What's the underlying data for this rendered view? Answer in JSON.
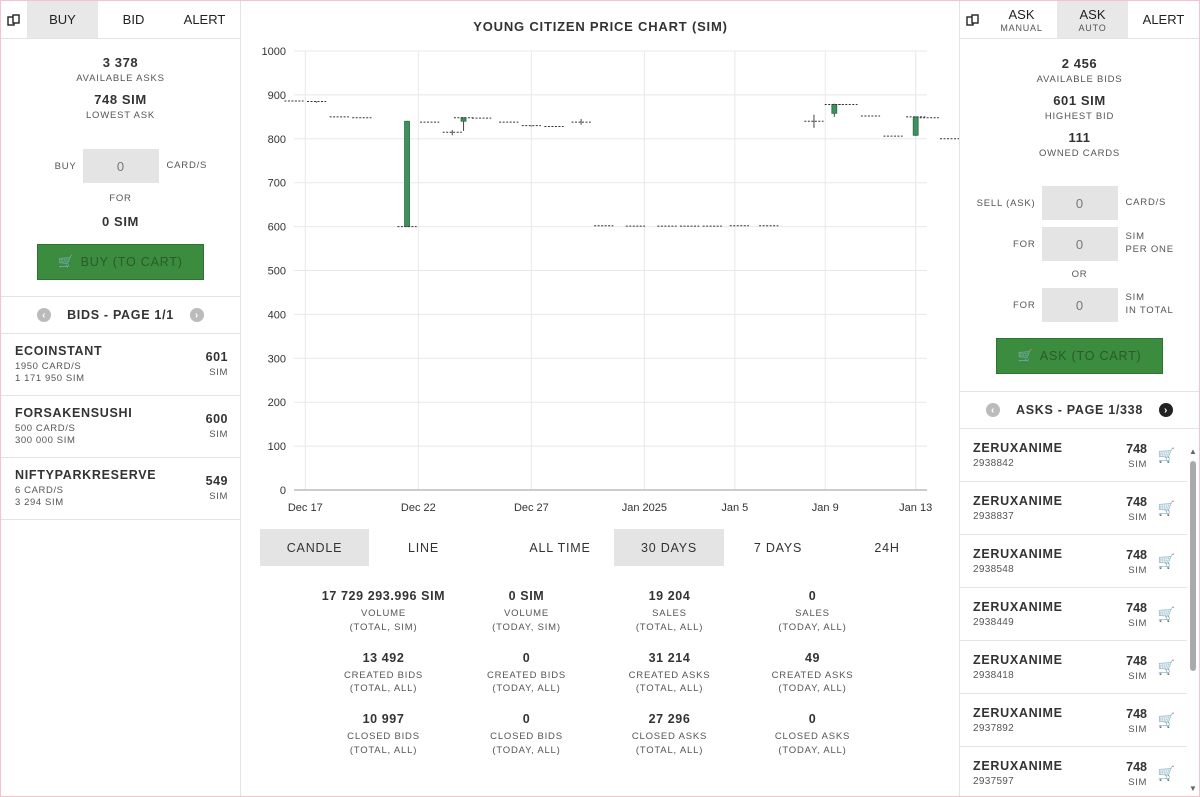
{
  "left": {
    "tabs": [
      {
        "label": "BUY",
        "active": true
      },
      {
        "label": "BID",
        "active": false
      },
      {
        "label": "ALERT",
        "active": false
      }
    ],
    "available_asks": {
      "value": "3 378",
      "label": "AVAILABLE ASKS"
    },
    "lowest_ask": {
      "value": "748 SIM",
      "label": "LOWEST ASK"
    },
    "buy_label": "BUY",
    "buy_input_value": "0",
    "buy_unit": "CARD/S",
    "for_label": "FOR",
    "total": "0 SIM",
    "buy_button": "BUY (TO CART)",
    "pager_label": "BIDS - PAGE 1/1",
    "bids": [
      {
        "name": "ECOINSTANT",
        "cards": "1950 CARD/S",
        "total": "1 171 950 SIM",
        "price": "601",
        "unit": "SIM"
      },
      {
        "name": "FORSAKENSUSHI",
        "cards": "500 CARD/S",
        "total": "300 000 SIM",
        "price": "600",
        "unit": "SIM"
      },
      {
        "name": "NIFTYPARKRESERVE",
        "cards": "6 CARD/S",
        "total": "3 294 SIM",
        "price": "549",
        "unit": "SIM"
      }
    ]
  },
  "middle": {
    "title": "YOUNG CITIZEN PRICE CHART (SIM)",
    "chart_type_toggles": [
      {
        "label": "CANDLE",
        "active": true
      },
      {
        "label": "LINE",
        "active": false
      }
    ],
    "range_toggles": [
      {
        "label": "ALL TIME",
        "active": false
      },
      {
        "label": "30 DAYS",
        "active": true
      },
      {
        "label": "7 DAYS",
        "active": false
      },
      {
        "label": "24H",
        "active": false
      }
    ],
    "stats": [
      {
        "value": "17 729 293.996 SIM",
        "label1": "VOLUME",
        "label2": "(TOTAL, SIM)"
      },
      {
        "value": "0 SIM",
        "label1": "VOLUME",
        "label2": "(TODAY, SIM)"
      },
      {
        "value": "19 204",
        "label1": "SALES",
        "label2": "(TOTAL, ALL)"
      },
      {
        "value": "0",
        "label1": "SALES",
        "label2": "(TODAY, ALL)"
      },
      {
        "value": "13 492",
        "label1": "CREATED BIDS",
        "label2": "(TOTAL, ALL)"
      },
      {
        "value": "0",
        "label1": "CREATED BIDS",
        "label2": "(TODAY, ALL)"
      },
      {
        "value": "31 214",
        "label1": "CREATED ASKS",
        "label2": "(TOTAL, ALL)"
      },
      {
        "value": "49",
        "label1": "CREATED ASKS",
        "label2": "(TODAY, ALL)"
      },
      {
        "value": "10 997",
        "label1": "CLOSED BIDS",
        "label2": "(TOTAL, ALL)"
      },
      {
        "value": "0",
        "label1": "CLOSED BIDS",
        "label2": "(TODAY, ALL)"
      },
      {
        "value": "27 296",
        "label1": "CLOSED ASKS",
        "label2": "(TOTAL, ALL)"
      },
      {
        "value": "0",
        "label1": "CLOSED ASKS",
        "label2": "(TODAY, ALL)"
      }
    ]
  },
  "chart_data": {
    "type": "candlestick",
    "title": "YOUNG CITIZEN PRICE CHART (SIM)",
    "ylim": [
      0,
      1000
    ],
    "y_ticks": [
      0,
      100,
      200,
      300,
      400,
      500,
      600,
      700,
      800,
      900,
      1000
    ],
    "x_range_days": [
      -0.5,
      27.5
    ],
    "x_ticks": [
      {
        "day": 0,
        "label": "Dec 17"
      },
      {
        "day": 5,
        "label": "Dec 22"
      },
      {
        "day": 10,
        "label": "Dec 27"
      },
      {
        "day": 15,
        "label": "Jan 2025"
      },
      {
        "day": 19,
        "label": "Jan 5"
      },
      {
        "day": 23,
        "label": "Jan 9"
      },
      {
        "day": 27,
        "label": "Jan 13"
      }
    ],
    "candles": [
      {
        "day": -0.5,
        "open": 886,
        "close": 886,
        "high": 886,
        "low": 886
      },
      {
        "day": 0.5,
        "open": 885,
        "close": 884,
        "high": 885,
        "low": 882
      },
      {
        "day": 1.5,
        "open": 850,
        "close": 850,
        "high": 850,
        "low": 850
      },
      {
        "day": 2.5,
        "open": 848,
        "close": 848,
        "high": 848,
        "low": 848
      },
      {
        "day": 4.5,
        "open": 840,
        "close": 600,
        "high": 840,
        "low": 600
      },
      {
        "day": 5.5,
        "open": 838,
        "close": 838,
        "high": 838,
        "low": 838
      },
      {
        "day": 6.5,
        "open": 815,
        "close": 815,
        "high": 820,
        "low": 808
      },
      {
        "day": 7,
        "open": 840,
        "close": 848,
        "high": 848,
        "low": 818
      },
      {
        "day": 7.8,
        "open": 847,
        "close": 847,
        "high": 847,
        "low": 847
      },
      {
        "day": 9,
        "open": 838,
        "close": 838,
        "high": 838,
        "low": 838
      },
      {
        "day": 10,
        "open": 830,
        "close": 828,
        "high": 830,
        "low": 828
      },
      {
        "day": 11,
        "open": 828,
        "close": 828,
        "high": 828,
        "low": 828
      },
      {
        "day": 12.2,
        "open": 835,
        "close": 838,
        "high": 845,
        "low": 832
      },
      {
        "day": 13.2,
        "open": 602,
        "close": 602,
        "high": 602,
        "low": 602
      },
      {
        "day": 14.6,
        "open": 601,
        "close": 601,
        "high": 601,
        "low": 601
      },
      {
        "day": 16,
        "open": 601,
        "close": 601,
        "high": 601,
        "low": 601
      },
      {
        "day": 17,
        "open": 601,
        "close": 601,
        "high": 601,
        "low": 601
      },
      {
        "day": 18,
        "open": 601,
        "close": 601,
        "high": 601,
        "low": 601
      },
      {
        "day": 19.2,
        "open": 602,
        "close": 602,
        "high": 602,
        "low": 602
      },
      {
        "day": 20.5,
        "open": 602,
        "close": 602,
        "high": 602,
        "low": 602
      },
      {
        "day": 22.5,
        "open": 840,
        "close": 840,
        "high": 855,
        "low": 825
      },
      {
        "day": 23.4,
        "open": 858,
        "close": 878,
        "high": 880,
        "low": 850
      },
      {
        "day": 24,
        "open": 878,
        "close": 878,
        "high": 878,
        "low": 878
      },
      {
        "day": 25,
        "open": 852,
        "close": 852,
        "high": 852,
        "low": 852
      },
      {
        "day": 26,
        "open": 806,
        "close": 806,
        "high": 806,
        "low": 806
      },
      {
        "day": 27,
        "open": 808,
        "close": 850,
        "high": 850,
        "low": 806
      },
      {
        "day": 27.6,
        "open": 848,
        "close": 848,
        "high": 848,
        "low": 848
      },
      {
        "day": 28.5,
        "open": 800,
        "close": 800,
        "high": 800,
        "low": 800
      }
    ],
    "colors": {
      "up": "#3f8f5f",
      "grid": "#e8e8e8"
    }
  },
  "right": {
    "tabs": [
      {
        "label": "ASK",
        "sub": "MANUAL",
        "active": false
      },
      {
        "label": "ASK",
        "sub": "AUTO",
        "active": true
      },
      {
        "label": "ALERT",
        "sub": "",
        "active": false
      }
    ],
    "available_bids": {
      "value": "2 456",
      "label": "AVAILABLE BIDS"
    },
    "highest_bid": {
      "value": "601 SIM",
      "label": "HIGHEST BID"
    },
    "owned_cards": {
      "value": "111",
      "label": "OWNED CARDS"
    },
    "sell_label": "SELL (ASK)",
    "sell_value": "0",
    "sell_unit": "CARD/S",
    "for_label": "FOR",
    "per_one_value": "0",
    "per_one_unit_1": "SIM",
    "per_one_unit_2": "PER ONE",
    "or_label": "OR",
    "total_value": "0",
    "total_unit_1": "SIM",
    "total_unit_2": "IN TOTAL",
    "ask_button": "ASK (TO CART)",
    "pager_label": "ASKS - PAGE 1/338",
    "asks": [
      {
        "name": "ZERUXANIME",
        "id": "2938842",
        "price": "748",
        "unit": "SIM"
      },
      {
        "name": "ZERUXANIME",
        "id": "2938837",
        "price": "748",
        "unit": "SIM"
      },
      {
        "name": "ZERUXANIME",
        "id": "2938548",
        "price": "748",
        "unit": "SIM"
      },
      {
        "name": "ZERUXANIME",
        "id": "2938449",
        "price": "748",
        "unit": "SIM"
      },
      {
        "name": "ZERUXANIME",
        "id": "2938418",
        "price": "748",
        "unit": "SIM"
      },
      {
        "name": "ZERUXANIME",
        "id": "2937892",
        "price": "748",
        "unit": "SIM"
      },
      {
        "name": "ZERUXANIME",
        "id": "2937597",
        "price": "748",
        "unit": "SIM"
      }
    ]
  },
  "icons": {
    "card_icon": "card-swap-icon",
    "cart_icon": "cart-icon",
    "left_arrow": "chevron-left-icon",
    "right_arrow": "chevron-right-icon"
  }
}
